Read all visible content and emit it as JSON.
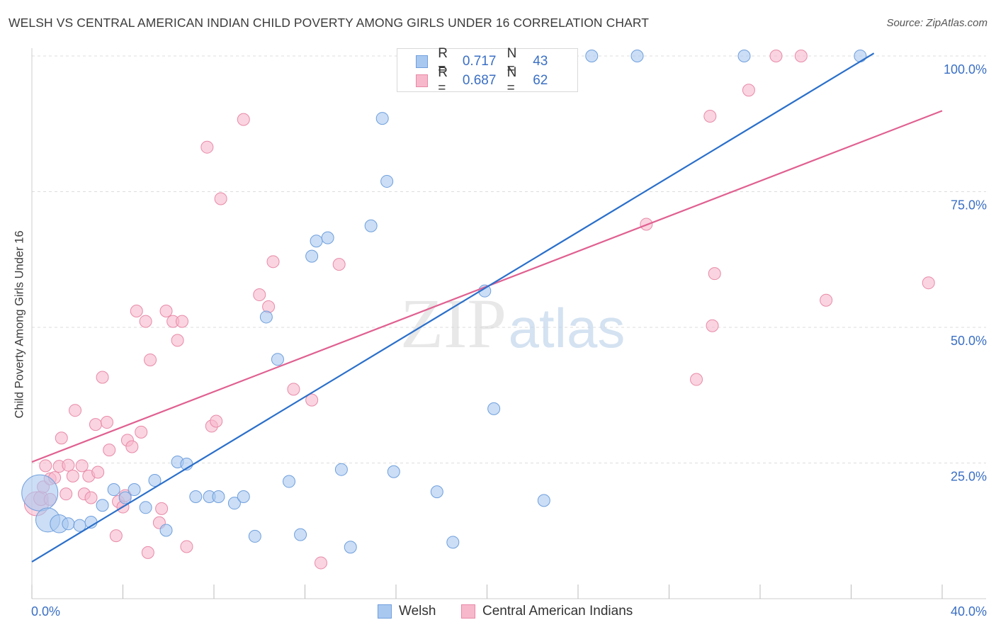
{
  "title": "WELSH VS CENTRAL AMERICAN INDIAN CHILD POVERTY AMONG GIRLS UNDER 16 CORRELATION CHART",
  "source": "Source: ZipAtlas.com",
  "watermark": {
    "zip": "ZIP",
    "atlas": "atlas"
  },
  "legend_top": {
    "rows": [
      {
        "r_label": "R =",
        "r_value": "0.717",
        "n_label": "N =",
        "n_value": "43"
      },
      {
        "r_label": "R =",
        "r_value": "0.687",
        "n_label": "N =",
        "n_value": "62"
      }
    ]
  },
  "legend_bottom": {
    "items": [
      "Welsh",
      "Central American Indians"
    ]
  },
  "colors": {
    "welsh_fill": "#a9c8f0",
    "welsh_stroke": "#6f9fdc",
    "welsh_line": "#2a6fca",
    "cai_fill": "#f7b8cb",
    "cai_stroke": "#e88aa8",
    "cai_line": "#e06090",
    "tick_label": "#3a6fc4",
    "grid": "#dddddd"
  },
  "chart_data": {
    "type": "scatter",
    "title": "WELSH VS CENTRAL AMERICAN INDIAN CHILD POVERTY AMONG GIRLS UNDER 16 CORRELATION CHART",
    "xlabel": "",
    "ylabel": "Child Poverty Among Girls Under 16",
    "xlim": [
      0,
      40
    ],
    "ylim": [
      0,
      100
    ],
    "x_tick_labels": [
      "0.0%",
      "40.0%"
    ],
    "y_ticks": [
      25,
      50,
      75,
      100
    ],
    "y_tick_labels": [
      "25.0%",
      "50.0%",
      "75.0%",
      "100.0%"
    ],
    "grid": true,
    "legend_placement": "top-center",
    "series": [
      {
        "name": "Welsh",
        "r": 0.717,
        "n": 43,
        "trend": {
          "x": [
            0,
            37.0
          ],
          "y": [
            6.8,
            100.5
          ]
        },
        "points": [
          {
            "x": 0.35,
            "y": 19.5,
            "s": 3
          },
          {
            "x": 0.7,
            "y": 14.5,
            "s": 2
          },
          {
            "x": 1.2,
            "y": 13.8,
            "s": 1.5
          },
          {
            "x": 1.6,
            "y": 13.8,
            "s": 1
          },
          {
            "x": 2.1,
            "y": 13.5,
            "s": 1
          },
          {
            "x": 2.6,
            "y": 14.1,
            "s": 1
          },
          {
            "x": 3.1,
            "y": 17.2,
            "s": 1
          },
          {
            "x": 3.6,
            "y": 20.1,
            "s": 1
          },
          {
            "x": 4.1,
            "y": 18.6,
            "s": 1
          },
          {
            "x": 4.5,
            "y": 20.1,
            "s": 1
          },
          {
            "x": 5.0,
            "y": 16.8,
            "s": 1
          },
          {
            "x": 5.4,
            "y": 21.8,
            "s": 1
          },
          {
            "x": 5.9,
            "y": 12.6,
            "s": 1
          },
          {
            "x": 6.4,
            "y": 25.2,
            "s": 1
          },
          {
            "x": 6.8,
            "y": 24.8,
            "s": 1
          },
          {
            "x": 7.2,
            "y": 18.8,
            "s": 1
          },
          {
            "x": 7.8,
            "y": 18.8,
            "s": 1
          },
          {
            "x": 8.2,
            "y": 18.8,
            "s": 1
          },
          {
            "x": 8.9,
            "y": 17.6,
            "s": 1
          },
          {
            "x": 9.3,
            "y": 18.8,
            "s": 1
          },
          {
            "x": 9.8,
            "y": 11.5,
            "s": 1
          },
          {
            "x": 10.3,
            "y": 51.9,
            "s": 1
          },
          {
            "x": 10.8,
            "y": 44.1,
            "s": 1
          },
          {
            "x": 11.3,
            "y": 21.6,
            "s": 1
          },
          {
            "x": 11.8,
            "y": 11.8,
            "s": 1
          },
          {
            "x": 12.3,
            "y": 63.1,
            "s": 1
          },
          {
            "x": 12.5,
            "y": 65.9,
            "s": 1
          },
          {
            "x": 13.0,
            "y": 66.5,
            "s": 1
          },
          {
            "x": 13.6,
            "y": 23.8,
            "s": 1
          },
          {
            "x": 14.0,
            "y": 9.5,
            "s": 1
          },
          {
            "x": 14.9,
            "y": 68.7,
            "s": 1
          },
          {
            "x": 15.4,
            "y": 88.5,
            "s": 1
          },
          {
            "x": 15.6,
            "y": 76.9,
            "s": 1
          },
          {
            "x": 15.9,
            "y": 23.4,
            "s": 1
          },
          {
            "x": 17.8,
            "y": 19.7,
            "s": 1
          },
          {
            "x": 18.5,
            "y": 10.4,
            "s": 1
          },
          {
            "x": 19.9,
            "y": 56.7,
            "s": 1
          },
          {
            "x": 20.3,
            "y": 35.0,
            "s": 1
          },
          {
            "x": 22.5,
            "y": 18.1,
            "s": 1
          },
          {
            "x": 24.6,
            "y": 100.0,
            "s": 1
          },
          {
            "x": 26.6,
            "y": 100.0,
            "s": 1
          },
          {
            "x": 31.3,
            "y": 100.0,
            "s": 1
          },
          {
            "x": 36.4,
            "y": 100.0,
            "s": 1
          }
        ]
      },
      {
        "name": "Central American Indians",
        "r": 0.687,
        "n": 62,
        "trend": {
          "x": [
            0,
            40.0
          ],
          "y": [
            25.2,
            89.9
          ]
        },
        "points": [
          {
            "x": 0.2,
            "y": 17.5,
            "s": 2
          },
          {
            "x": 0.4,
            "y": 18.5,
            "s": 1.2
          },
          {
            "x": 0.5,
            "y": 20.6,
            "s": 1
          },
          {
            "x": 0.8,
            "y": 18.3,
            "s": 1
          },
          {
            "x": 0.6,
            "y": 24.5,
            "s": 1
          },
          {
            "x": 0.8,
            "y": 22.1,
            "s": 1
          },
          {
            "x": 1.0,
            "y": 22.3,
            "s": 1
          },
          {
            "x": 1.2,
            "y": 24.4,
            "s": 1
          },
          {
            "x": 1.3,
            "y": 29.6,
            "s": 1
          },
          {
            "x": 1.5,
            "y": 19.3,
            "s": 1
          },
          {
            "x": 1.6,
            "y": 24.6,
            "s": 1
          },
          {
            "x": 1.8,
            "y": 22.6,
            "s": 1
          },
          {
            "x": 1.9,
            "y": 34.7,
            "s": 1
          },
          {
            "x": 2.2,
            "y": 24.5,
            "s": 1
          },
          {
            "x": 2.3,
            "y": 19.3,
            "s": 1
          },
          {
            "x": 2.5,
            "y": 22.6,
            "s": 1
          },
          {
            "x": 2.6,
            "y": 18.6,
            "s": 1
          },
          {
            "x": 2.8,
            "y": 32.1,
            "s": 1
          },
          {
            "x": 2.9,
            "y": 23.3,
            "s": 1
          },
          {
            "x": 3.1,
            "y": 40.8,
            "s": 1
          },
          {
            "x": 3.3,
            "y": 32.5,
            "s": 1
          },
          {
            "x": 3.4,
            "y": 27.4,
            "s": 1
          },
          {
            "x": 3.7,
            "y": 11.6,
            "s": 1
          },
          {
            "x": 3.8,
            "y": 17.9,
            "s": 1
          },
          {
            "x": 4.0,
            "y": 16.9,
            "s": 1
          },
          {
            "x": 4.1,
            "y": 19.0,
            "s": 1
          },
          {
            "x": 4.2,
            "y": 29.2,
            "s": 1
          },
          {
            "x": 4.4,
            "y": 28.0,
            "s": 1
          },
          {
            "x": 4.6,
            "y": 53.0,
            "s": 1
          },
          {
            "x": 4.8,
            "y": 30.7,
            "s": 1
          },
          {
            "x": 5.0,
            "y": 51.1,
            "s": 1
          },
          {
            "x": 5.1,
            "y": 8.5,
            "s": 1
          },
          {
            "x": 5.2,
            "y": 44.0,
            "s": 1
          },
          {
            "x": 5.6,
            "y": 14.0,
            "s": 1
          },
          {
            "x": 5.7,
            "y": 16.6,
            "s": 1
          },
          {
            "x": 5.9,
            "y": 53.0,
            "s": 1
          },
          {
            "x": 6.2,
            "y": 51.1,
            "s": 1
          },
          {
            "x": 6.4,
            "y": 47.6,
            "s": 1
          },
          {
            "x": 6.6,
            "y": 51.1,
            "s": 1
          },
          {
            "x": 6.8,
            "y": 9.6,
            "s": 1
          },
          {
            "x": 7.7,
            "y": 83.2,
            "s": 1
          },
          {
            "x": 7.9,
            "y": 31.8,
            "s": 1
          },
          {
            "x": 8.1,
            "y": 32.7,
            "s": 1
          },
          {
            "x": 8.3,
            "y": 73.7,
            "s": 1
          },
          {
            "x": 9.3,
            "y": 88.3,
            "s": 1
          },
          {
            "x": 10.0,
            "y": 56.0,
            "s": 1
          },
          {
            "x": 10.4,
            "y": 53.8,
            "s": 1
          },
          {
            "x": 10.6,
            "y": 62.1,
            "s": 1
          },
          {
            "x": 11.5,
            "y": 38.6,
            "s": 1
          },
          {
            "x": 12.3,
            "y": 36.6,
            "s": 1
          },
          {
            "x": 12.7,
            "y": 6.6,
            "s": 1
          },
          {
            "x": 13.5,
            "y": 61.6,
            "s": 1
          },
          {
            "x": 27.0,
            "y": 69.0,
            "s": 1
          },
          {
            "x": 29.2,
            "y": 40.4,
            "s": 1
          },
          {
            "x": 29.9,
            "y": 50.3,
            "s": 1
          },
          {
            "x": 29.8,
            "y": 88.9,
            "s": 1
          },
          {
            "x": 30.0,
            "y": 59.9,
            "s": 1
          },
          {
            "x": 31.5,
            "y": 93.7,
            "s": 1
          },
          {
            "x": 32.7,
            "y": 100.0,
            "s": 1
          },
          {
            "x": 33.8,
            "y": 100.0,
            "s": 1
          },
          {
            "x": 34.9,
            "y": 55.0,
            "s": 1
          },
          {
            "x": 39.4,
            "y": 58.2,
            "s": 1
          }
        ]
      }
    ]
  }
}
